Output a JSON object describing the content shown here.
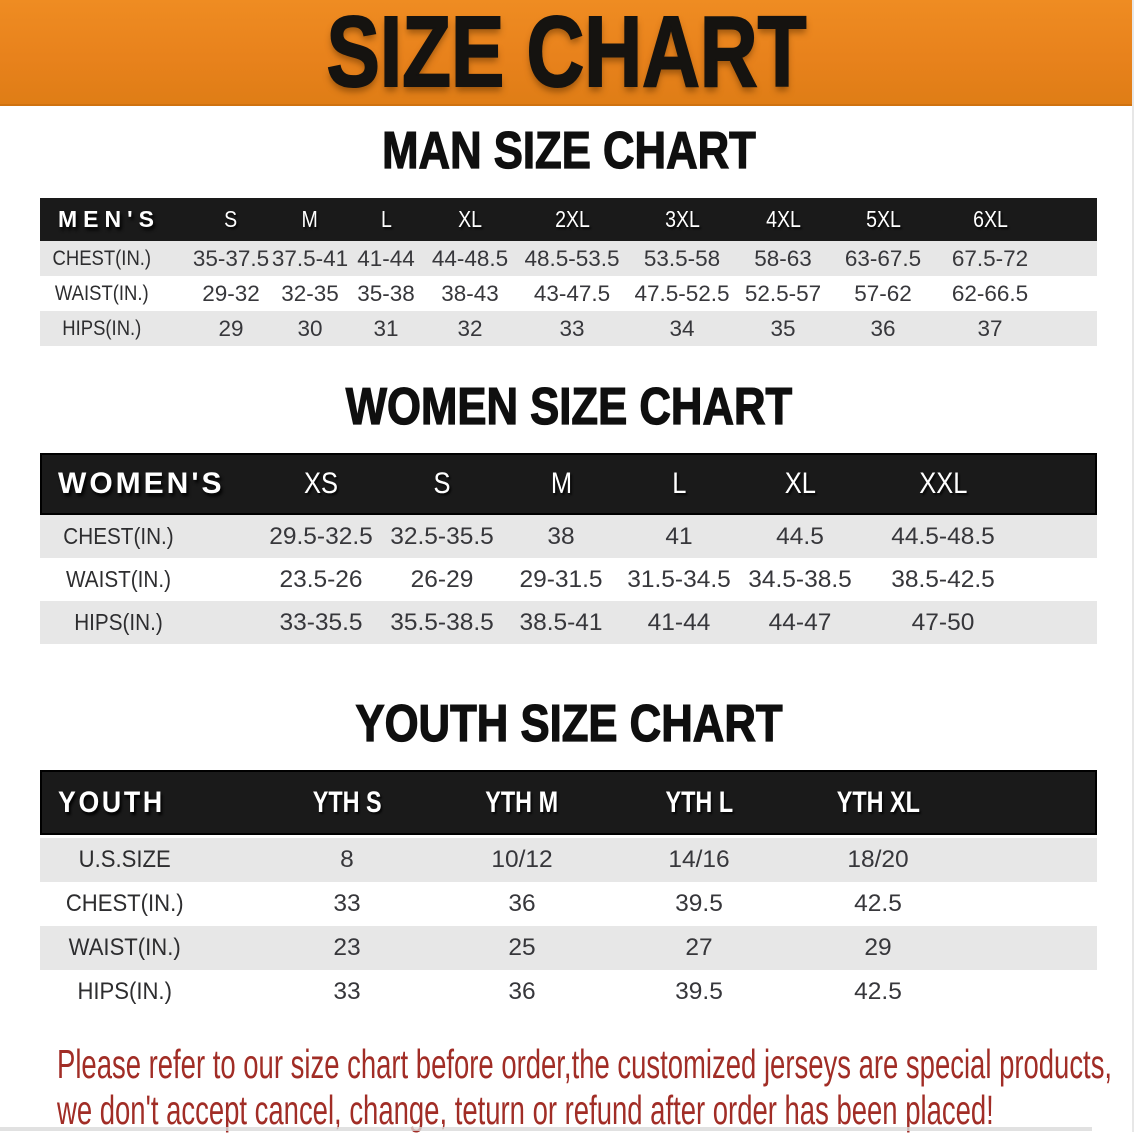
{
  "banner": {
    "title": "SIZE CHART",
    "bg_color": "#E8821C"
  },
  "headings": {
    "men": "MAN SIZE CHART",
    "women": "WOMEN SIZE CHART",
    "youth": "YOUTH SIZE CHART"
  },
  "tables": {
    "men": {
      "corner": "MEN'S",
      "sizes": [
        "S",
        "M",
        "L",
        "XL",
        "2XL",
        "3XL",
        "4XL",
        "5XL",
        "6XL"
      ],
      "rows": [
        {
          "label": "CHEST(IN.)",
          "values": [
            "35-37.5",
            "37.5-41",
            "41-44",
            "44-48.5",
            "48.5-53.5",
            "53.5-58",
            "58-63",
            "63-67.5",
            "67.5-72"
          ]
        },
        {
          "label": "WAIST(IN.)",
          "values": [
            "29-32",
            "32-35",
            "35-38",
            "38-43",
            "43-47.5",
            "47.5-52.5",
            "52.5-57",
            "57-62",
            "62-66.5"
          ]
        },
        {
          "label": "HIPS(IN.)",
          "values": [
            "29",
            "30",
            "31",
            "32",
            "33",
            "34",
            "35",
            "36",
            "37"
          ]
        }
      ]
    },
    "women": {
      "corner": "WOMEN'S",
      "sizes": [
        "XS",
        "S",
        "M",
        "L",
        "XL",
        "XXL"
      ],
      "rows": [
        {
          "label": "CHEST(IN.)",
          "values": [
            "29.5-32.5",
            "32.5-35.5",
            "38",
            "41",
            "44.5",
            "44.5-48.5"
          ]
        },
        {
          "label": "WAIST(IN.)",
          "values": [
            "23.5-26",
            "26-29",
            "29-31.5",
            "31.5-34.5",
            "34.5-38.5",
            "38.5-42.5"
          ]
        },
        {
          "label": "HIPS(IN.)",
          "values": [
            "33-35.5",
            "35.5-38.5",
            "38.5-41",
            "41-44",
            "44-47",
            "47-50"
          ]
        }
      ]
    },
    "youth": {
      "corner": "YOUTH",
      "sizes": [
        "YTH S",
        "YTH M",
        "YTH L",
        "YTH XL"
      ],
      "rows": [
        {
          "label": "U.S.SIZE",
          "values": [
            "8",
            "10/12",
            "14/16",
            "18/20"
          ]
        },
        {
          "label": "CHEST(IN.)",
          "values": [
            "33",
            "36",
            "39.5",
            "42.5"
          ]
        },
        {
          "label": "WAIST(IN.)",
          "values": [
            "23",
            "25",
            "27",
            "29"
          ]
        },
        {
          "label": "HIPS(IN.)",
          "values": [
            "33",
            "36",
            "39.5",
            "42.5"
          ]
        }
      ]
    }
  },
  "footnote": {
    "line1": "Please refer to our size chart before order,the customized jerseys are special products,",
    "line2": "we don't accept cancel, change, teturn or refund after order has been placed!",
    "color": "#A12D26"
  },
  "colors": {
    "banner_orange": "#E8821C",
    "header_black": "#1A1A1A",
    "row_gray": "#E7E7E7",
    "footnote_red": "#A12D26"
  }
}
